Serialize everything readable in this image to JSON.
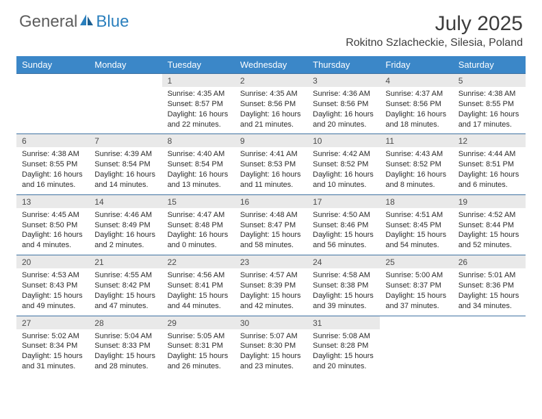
{
  "logo": {
    "text1": "General",
    "text2": "Blue",
    "color1": "#5c5c5c",
    "color2": "#2a7fbd"
  },
  "title": "July 2025",
  "location": "Rokitno Szlacheckie, Silesia, Poland",
  "header_bg": "#3b87c8",
  "header_fg": "#ffffff",
  "daynum_bg": "#e9e9e9",
  "rule_color": "#3b6fa0",
  "text_color": "#2a2a2a",
  "body_fontsize": 11,
  "weekdays": [
    "Sunday",
    "Monday",
    "Tuesday",
    "Wednesday",
    "Thursday",
    "Friday",
    "Saturday"
  ],
  "weeks": [
    [
      null,
      null,
      {
        "n": "1",
        "sr": "4:35 AM",
        "ss": "8:57 PM",
        "dl": "16 hours and 22 minutes."
      },
      {
        "n": "2",
        "sr": "4:35 AM",
        "ss": "8:56 PM",
        "dl": "16 hours and 21 minutes."
      },
      {
        "n": "3",
        "sr": "4:36 AM",
        "ss": "8:56 PM",
        "dl": "16 hours and 20 minutes."
      },
      {
        "n": "4",
        "sr": "4:37 AM",
        "ss": "8:56 PM",
        "dl": "16 hours and 18 minutes."
      },
      {
        "n": "5",
        "sr": "4:38 AM",
        "ss": "8:55 PM",
        "dl": "16 hours and 17 minutes."
      }
    ],
    [
      {
        "n": "6",
        "sr": "4:38 AM",
        "ss": "8:55 PM",
        "dl": "16 hours and 16 minutes."
      },
      {
        "n": "7",
        "sr": "4:39 AM",
        "ss": "8:54 PM",
        "dl": "16 hours and 14 minutes."
      },
      {
        "n": "8",
        "sr": "4:40 AM",
        "ss": "8:54 PM",
        "dl": "16 hours and 13 minutes."
      },
      {
        "n": "9",
        "sr": "4:41 AM",
        "ss": "8:53 PM",
        "dl": "16 hours and 11 minutes."
      },
      {
        "n": "10",
        "sr": "4:42 AM",
        "ss": "8:52 PM",
        "dl": "16 hours and 10 minutes."
      },
      {
        "n": "11",
        "sr": "4:43 AM",
        "ss": "8:52 PM",
        "dl": "16 hours and 8 minutes."
      },
      {
        "n": "12",
        "sr": "4:44 AM",
        "ss": "8:51 PM",
        "dl": "16 hours and 6 minutes."
      }
    ],
    [
      {
        "n": "13",
        "sr": "4:45 AM",
        "ss": "8:50 PM",
        "dl": "16 hours and 4 minutes."
      },
      {
        "n": "14",
        "sr": "4:46 AM",
        "ss": "8:49 PM",
        "dl": "16 hours and 2 minutes."
      },
      {
        "n": "15",
        "sr": "4:47 AM",
        "ss": "8:48 PM",
        "dl": "16 hours and 0 minutes."
      },
      {
        "n": "16",
        "sr": "4:48 AM",
        "ss": "8:47 PM",
        "dl": "15 hours and 58 minutes."
      },
      {
        "n": "17",
        "sr": "4:50 AM",
        "ss": "8:46 PM",
        "dl": "15 hours and 56 minutes."
      },
      {
        "n": "18",
        "sr": "4:51 AM",
        "ss": "8:45 PM",
        "dl": "15 hours and 54 minutes."
      },
      {
        "n": "19",
        "sr": "4:52 AM",
        "ss": "8:44 PM",
        "dl": "15 hours and 52 minutes."
      }
    ],
    [
      {
        "n": "20",
        "sr": "4:53 AM",
        "ss": "8:43 PM",
        "dl": "15 hours and 49 minutes."
      },
      {
        "n": "21",
        "sr": "4:55 AM",
        "ss": "8:42 PM",
        "dl": "15 hours and 47 minutes."
      },
      {
        "n": "22",
        "sr": "4:56 AM",
        "ss": "8:41 PM",
        "dl": "15 hours and 44 minutes."
      },
      {
        "n": "23",
        "sr": "4:57 AM",
        "ss": "8:39 PM",
        "dl": "15 hours and 42 minutes."
      },
      {
        "n": "24",
        "sr": "4:58 AM",
        "ss": "8:38 PM",
        "dl": "15 hours and 39 minutes."
      },
      {
        "n": "25",
        "sr": "5:00 AM",
        "ss": "8:37 PM",
        "dl": "15 hours and 37 minutes."
      },
      {
        "n": "26",
        "sr": "5:01 AM",
        "ss": "8:36 PM",
        "dl": "15 hours and 34 minutes."
      }
    ],
    [
      {
        "n": "27",
        "sr": "5:02 AM",
        "ss": "8:34 PM",
        "dl": "15 hours and 31 minutes."
      },
      {
        "n": "28",
        "sr": "5:04 AM",
        "ss": "8:33 PM",
        "dl": "15 hours and 28 minutes."
      },
      {
        "n": "29",
        "sr": "5:05 AM",
        "ss": "8:31 PM",
        "dl": "15 hours and 26 minutes."
      },
      {
        "n": "30",
        "sr": "5:07 AM",
        "ss": "8:30 PM",
        "dl": "15 hours and 23 minutes."
      },
      {
        "n": "31",
        "sr": "5:08 AM",
        "ss": "8:28 PM",
        "dl": "15 hours and 20 minutes."
      },
      null,
      null
    ]
  ]
}
